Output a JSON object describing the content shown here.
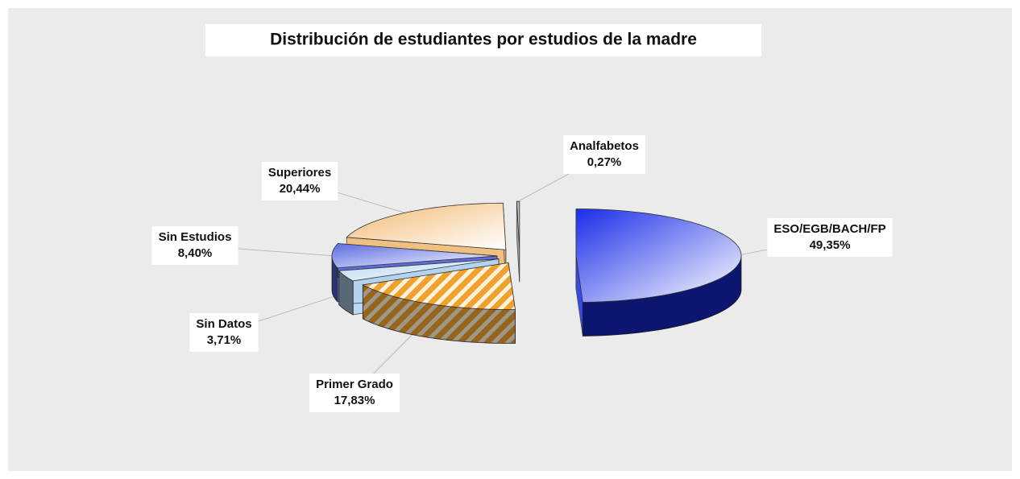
{
  "chart_data": {
    "type": "pie3d",
    "title": "Distribución de estudiantes por estudios de la madre",
    "categories": [
      "ESO/EGB/BACH/FP",
      "Primer Grado",
      "Sin Datos",
      "Sin Estudios",
      "Superiores",
      "Analfabetos"
    ],
    "values": [
      49.35,
      17.83,
      3.71,
      8.4,
      20.44,
      0.27
    ],
    "value_labels": [
      "49,35%",
      "17,83%",
      "3,71%",
      "8,40%",
      "20,44%",
      "0,27%"
    ],
    "colors": [
      "#1a2de8",
      "#f0a02c",
      "#b4d6f0",
      "#5a6ae0",
      "#f2b870",
      "#9a9a9a"
    ]
  }
}
